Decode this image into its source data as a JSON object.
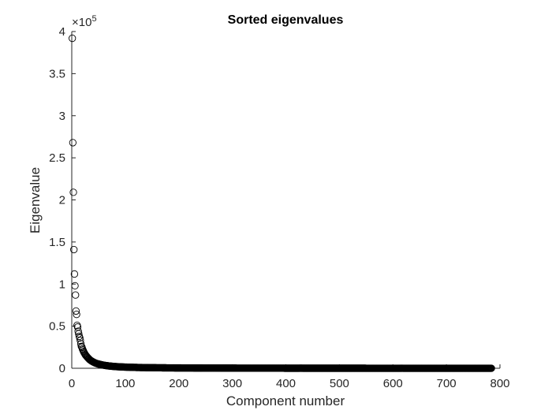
{
  "chart_data": {
    "type": "scatter",
    "title": "Sorted eigenvalues",
    "xlabel": "Component number",
    "ylabel": "Eigenvalue",
    "xlim": [
      0,
      800
    ],
    "ylim": [
      0,
      400000
    ],
    "xticks": [
      "0",
      "100",
      "200",
      "300",
      "400",
      "500",
      "600",
      "700",
      "800"
    ],
    "yticks": [
      "0",
      "0.5",
      "1",
      "1.5",
      "2",
      "2.5",
      "3",
      "3.5",
      "4"
    ],
    "y_exponent_base": "×10",
    "y_exponent_power": "5",
    "marker": "open-circle",
    "marker_color": "#000000",
    "grid": false,
    "legend": "none",
    "series": [
      {
        "x": [
          1,
          2,
          3,
          4,
          5,
          6,
          7,
          8,
          9,
          10,
          11,
          12,
          13,
          14,
          15,
          16,
          17,
          18,
          19,
          20,
          22,
          24,
          26,
          28,
          30,
          33,
          36,
          40,
          45,
          50,
          55,
          60,
          70,
          80,
          90,
          100,
          120,
          140,
          160,
          180,
          200,
          250,
          300,
          350,
          400,
          450,
          500,
          550,
          600,
          650,
          700,
          750,
          784
        ],
        "y": [
          392000,
          268000,
          209000,
          141000,
          112000,
          98000,
          87000,
          68000,
          64000,
          51000,
          49000,
          44000,
          41000,
          38000,
          36000,
          33000,
          29000,
          26000,
          25000,
          23000,
          20000,
          17500,
          15500,
          14000,
          12500,
          10500,
          9000,
          7500,
          6000,
          5000,
          4300,
          3600,
          2700,
          2100,
          1700,
          1400,
          1000,
          750,
          600,
          480,
          400,
          250,
          160,
          110,
          80,
          60,
          45,
          35,
          25,
          18,
          12,
          8,
          5
        ]
      }
    ]
  }
}
